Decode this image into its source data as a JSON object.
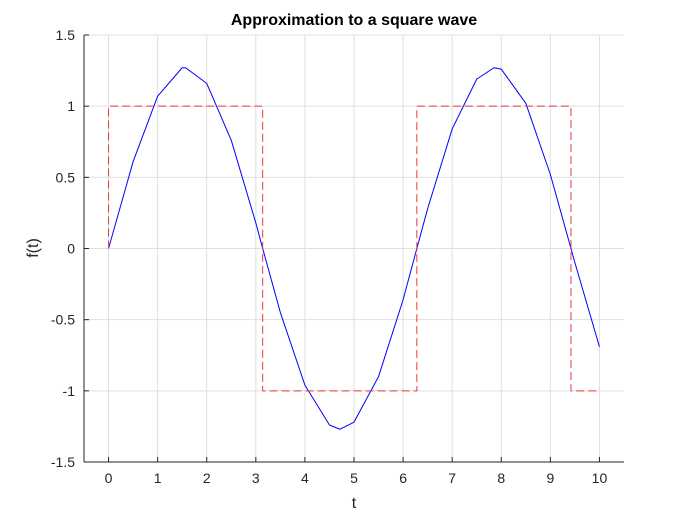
{
  "chart_data": {
    "type": "line",
    "title": "Approximation to a square wave",
    "xlabel": "t",
    "ylabel": "f(t)",
    "xlim": [
      -0.5,
      10.5
    ],
    "ylim": [
      -1.5,
      1.5
    ],
    "xticks": [
      0,
      1,
      2,
      3,
      4,
      5,
      6,
      7,
      8,
      9,
      10
    ],
    "yticks": [
      -1.5,
      -1,
      -0.5,
      0,
      0.5,
      1,
      1.5
    ],
    "xtick_labels": [
      "0",
      "1",
      "2",
      "3",
      "4",
      "5",
      "6",
      "7",
      "8",
      "9",
      "10"
    ],
    "ytick_labels": [
      "-1.5",
      "-1",
      "-0.5",
      "0",
      "0.5",
      "1",
      "1.5"
    ],
    "grid": true,
    "series": [
      {
        "style": "solid",
        "color": "#0000ff",
        "x": [
          0,
          0.5,
          1,
          1.5,
          1.57,
          2,
          2.5,
          3,
          3.14,
          3.5,
          4,
          4.5,
          4.71,
          5,
          5.5,
          6,
          6.28,
          6.5,
          7,
          7.5,
          7.85,
          8,
          8.5,
          9,
          9.42,
          9.5,
          10
        ],
        "y": [
          0,
          0.61,
          1.07,
          1.27,
          1.27,
          1.16,
          0.76,
          0.18,
          0,
          -0.45,
          -0.96,
          -1.24,
          -1.27,
          -1.22,
          -0.9,
          -0.36,
          0,
          0.28,
          0.84,
          1.19,
          1.27,
          1.26,
          1.02,
          0.52,
          0,
          -0.1,
          -0.69
        ]
      },
      {
        "style": "dashed",
        "color": "#e8383a",
        "x": [
          0,
          0,
          3.14,
          3.14,
          6.28,
          6.28,
          9.42,
          9.42,
          10
        ],
        "y": [
          0,
          1,
          1,
          -1,
          -1,
          1,
          1,
          -1,
          -1
        ]
      }
    ]
  }
}
